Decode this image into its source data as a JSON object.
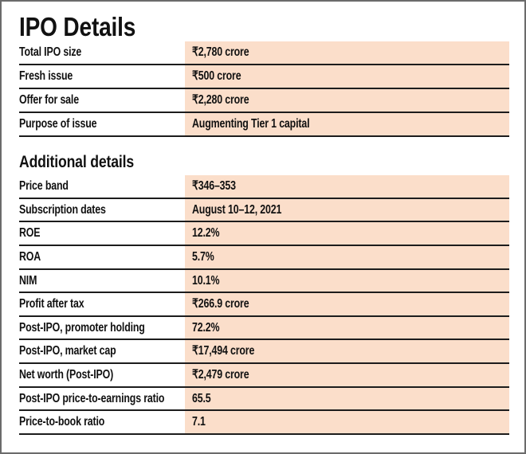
{
  "styles": {
    "accent_bg": "#fbdeca",
    "divider": "#1c1c1c",
    "border": "#6b6b6b",
    "text": "#111111"
  },
  "chart_data": {
    "type": "table",
    "title": "IPO Details",
    "sections": [
      {
        "heading": "IPO Details",
        "rows": [
          {
            "label": "Total IPO size",
            "value": "₹2,780 crore"
          },
          {
            "label": "Fresh issue",
            "value": "₹500 crore"
          },
          {
            "label": "Offer for sale",
            "value": "₹2,280 crore"
          },
          {
            "label": "Purpose of issue",
            "value": "Augmenting Tier 1 capital"
          }
        ]
      },
      {
        "heading": "Additional details",
        "rows": [
          {
            "label": "Price band",
            "value": "₹346–353"
          },
          {
            "label": "Subscription dates",
            "value": "August 10–12, 2021"
          },
          {
            "label": "ROE",
            "value": "12.2%"
          },
          {
            "label": "ROA",
            "value": "5.7%"
          },
          {
            "label": "NIM",
            "value": "10.1%"
          },
          {
            "label": "Profit after tax",
            "value": "₹266.9 crore"
          },
          {
            "label": "Post-IPO, promoter holding",
            "value": "72.2%"
          },
          {
            "label": "Post-IPO, market cap",
            "value": "₹17,494 crore"
          },
          {
            "label": "Net worth  (Post-IPO)",
            "value": "₹2,479 crore"
          },
          {
            "label": "Post-IPO price-to-earnings ratio",
            "value": "65.5"
          },
          {
            "label": "Price-to-book ratio",
            "value": "7.1"
          }
        ]
      }
    ]
  }
}
